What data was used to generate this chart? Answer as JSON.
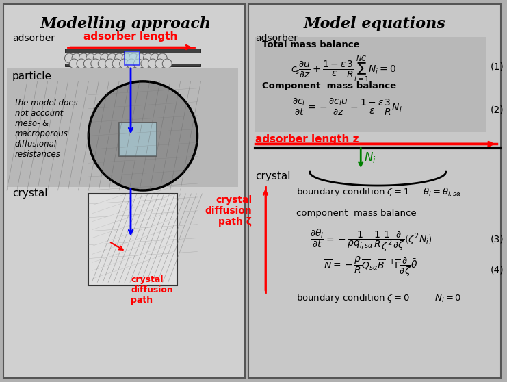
{
  "bg_color": "#c8c8c8",
  "left_panel_bg": "#d8d8d8",
  "right_panel_bg": "#c8c8c8",
  "eq_box_bg": "#b8b8b8",
  "title_left": "Modelling approach",
  "title_right": "Model equations",
  "adsorber_label_left": "adsorber",
  "adsorber_label_right": "adsorber",
  "particle_label": "particle",
  "crystal_label_left": "crystal",
  "crystal_label_right": "crystal",
  "adsorber_length_label": "adsorber length",
  "adsorber_length_z_label": "adsorber length z",
  "crystal_diffusion_label": "crystal\ndiffusion\npath ζ",
  "crystal_diffusion_label2": "crystal\ndiffusion\npath",
  "Ni_label": "$N_i$",
  "model_note": "the model does\nnot account\nmeso- &\nmacroporous\ndiffusional\nresistances"
}
